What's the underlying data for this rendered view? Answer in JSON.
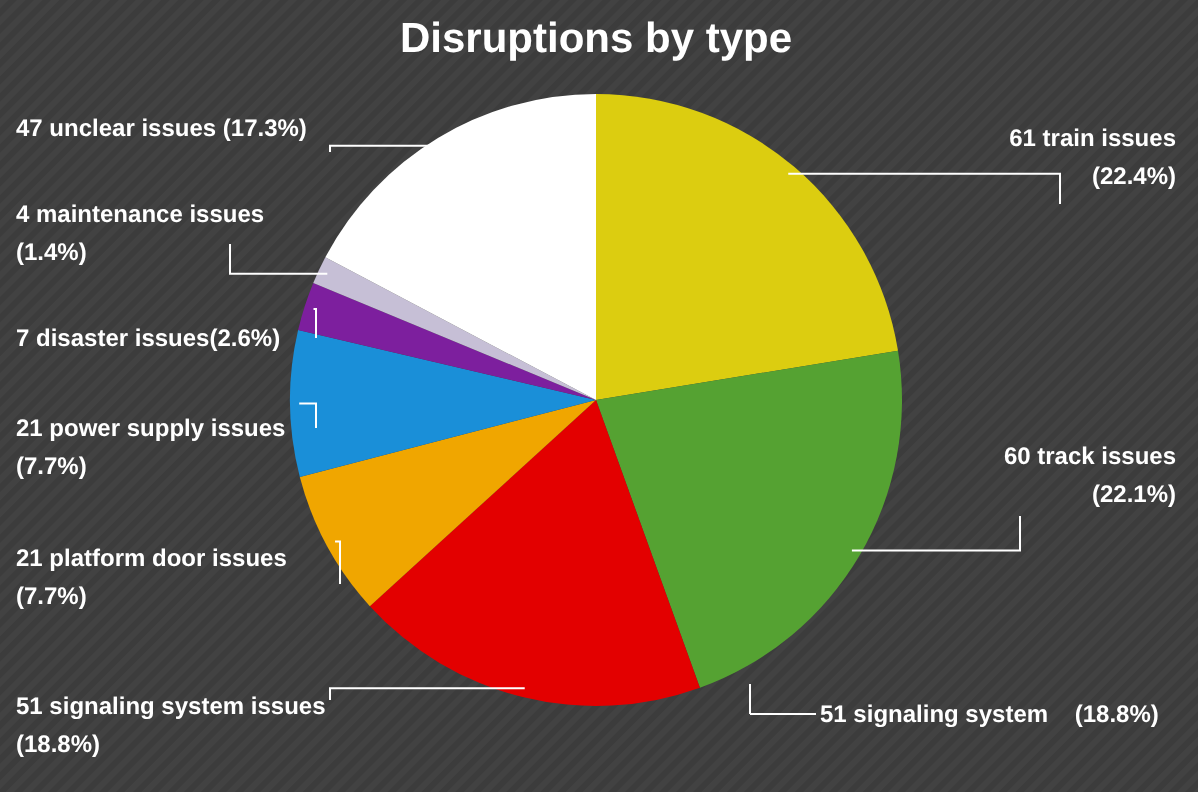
{
  "chart_data": {
    "type": "pie",
    "title": "Disruptions by type",
    "categories": [
      "61 train issues\n(22.4%)",
      "60 track issues\n(22.1%)",
      "51 signaling system issues\n(18.8%)",
      "21 platform door issues\n(7.7%)",
      "21 power supply issues\n(7.7%)",
      "7 disaster issues(2.6%)",
      "4 maintenance issues\n(1.4%)",
      "47 unclear issues (17.3%)"
    ],
    "values": [
      61,
      60,
      51,
      21,
      21,
      7,
      4,
      47
    ],
    "colors": [
      "#dccd10",
      "#55a232",
      "#e30000",
      "#f0a600",
      "#1a8fd8",
      "#7d1f9e",
      "#c6bfd6",
      "#ffffff"
    ],
    "annotations": [
      "51 signaling system    (18.8%)"
    ]
  }
}
